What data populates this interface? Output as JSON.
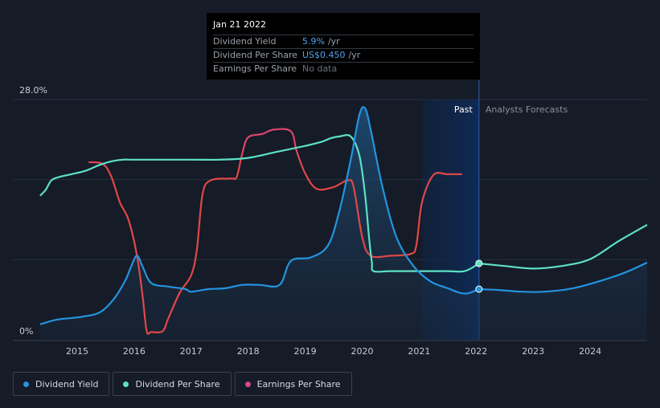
{
  "tooltip": {
    "date": "Jan 21 2022",
    "rows": [
      {
        "label": "Dividend Yield",
        "value": "5.9%",
        "unit": "/yr"
      },
      {
        "label": "Dividend Per Share",
        "value": "US$0.450",
        "unit": "/yr"
      },
      {
        "label": "Earnings Per Share",
        "value": "",
        "unit": "",
        "nodata": "No data"
      }
    ]
  },
  "legend": [
    {
      "label": "Dividend Yield",
      "color": "#2394df"
    },
    {
      "label": "Dividend Per Share",
      "color": "#5de0c6"
    },
    {
      "label": "Earnings Per Share",
      "color": "#d8458f"
    }
  ],
  "chart_data": {
    "type": "line",
    "x_ticks": [
      "2015",
      "2016",
      "2017",
      "2018",
      "2019",
      "2020",
      "2021",
      "2022",
      "2023",
      "2024"
    ],
    "y_ticks": [
      "0%",
      "28.0%"
    ],
    "ylim": [
      0,
      28.0
    ],
    "xlim": [
      2014.3,
      2025.0
    ],
    "regions": {
      "past_label": "Past",
      "forecast_label": "Analysts Forecasts",
      "past_start": 2021.05,
      "divider": 2022.05
    },
    "colors": {
      "yield": "#2394df",
      "dps": "#5de0c6",
      "eps": "#d8458f",
      "eps_low": "#e04747",
      "grid": "#2a3240",
      "past_band": "#0f2444"
    },
    "series": [
      {
        "name": "Dividend Yield",
        "points": [
          [
            2014.35,
            1.8
          ],
          [
            2014.55,
            2.2
          ],
          [
            2014.7,
            2.4
          ],
          [
            2014.85,
            2.5
          ],
          [
            2015.1,
            2.7
          ],
          [
            2015.4,
            3.2
          ],
          [
            2015.65,
            4.8
          ],
          [
            2015.85,
            7.0
          ],
          [
            2015.95,
            8.6
          ],
          [
            2016.05,
            9.8
          ],
          [
            2016.15,
            8.5
          ],
          [
            2016.3,
            6.6
          ],
          [
            2016.6,
            6.2
          ],
          [
            2016.9,
            5.9
          ],
          [
            2017.0,
            5.6
          ],
          [
            2017.3,
            5.9
          ],
          [
            2017.6,
            6.0
          ],
          [
            2017.9,
            6.4
          ],
          [
            2018.2,
            6.4
          ],
          [
            2018.55,
            6.4
          ],
          [
            2018.75,
            9.2
          ],
          [
            2019.1,
            9.6
          ],
          [
            2019.4,
            11.0
          ],
          [
            2019.6,
            15.0
          ],
          [
            2019.8,
            21.0
          ],
          [
            2019.95,
            26.2
          ],
          [
            2020.05,
            27.0
          ],
          [
            2020.15,
            24.5
          ],
          [
            2020.35,
            18.0
          ],
          [
            2020.6,
            12.0
          ],
          [
            2020.9,
            8.6
          ],
          [
            2021.2,
            6.8
          ],
          [
            2021.5,
            6.0
          ],
          [
            2021.7,
            5.5
          ],
          [
            2021.85,
            5.4
          ],
          [
            2022.05,
            5.9
          ]
        ],
        "forecast": [
          [
            2022.05,
            5.9
          ],
          [
            2022.4,
            5.8
          ],
          [
            2022.8,
            5.6
          ],
          [
            2023.2,
            5.6
          ],
          [
            2023.7,
            6.0
          ],
          [
            2024.2,
            6.9
          ],
          [
            2024.6,
            7.8
          ],
          [
            2025.0,
            9.0
          ]
        ]
      },
      {
        "name": "Dividend Per Share",
        "points": [
          [
            2014.35,
            16.8
          ],
          [
            2014.45,
            17.5
          ],
          [
            2014.55,
            18.6
          ],
          [
            2014.7,
            19.0
          ],
          [
            2014.9,
            19.3
          ],
          [
            2015.15,
            19.7
          ],
          [
            2015.4,
            20.4
          ],
          [
            2015.6,
            20.8
          ],
          [
            2015.8,
            21.0
          ],
          [
            2016.0,
            21.0
          ],
          [
            2016.5,
            21.0
          ],
          [
            2017.0,
            21.0
          ],
          [
            2017.5,
            21.0
          ],
          [
            2018.0,
            21.2
          ],
          [
            2018.5,
            21.9
          ],
          [
            2019.0,
            22.6
          ],
          [
            2019.3,
            23.1
          ],
          [
            2019.45,
            23.5
          ],
          [
            2019.6,
            23.7
          ],
          [
            2019.8,
            23.7
          ],
          [
            2019.95,
            21.5
          ],
          [
            2020.05,
            17.0
          ],
          [
            2020.12,
            12.0
          ],
          [
            2020.17,
            9.0
          ],
          [
            2020.2,
            8.0
          ],
          [
            2020.5,
            8.0
          ],
          [
            2021.0,
            8.0
          ],
          [
            2021.5,
            8.0
          ],
          [
            2021.8,
            8.0
          ],
          [
            2022.05,
            8.9
          ]
        ],
        "forecast": [
          [
            2022.05,
            8.9
          ],
          [
            2022.5,
            8.6
          ],
          [
            2023.0,
            8.3
          ],
          [
            2023.5,
            8.6
          ],
          [
            2024.0,
            9.4
          ],
          [
            2024.5,
            11.5
          ],
          [
            2025.0,
            13.4
          ]
        ]
      },
      {
        "name": "Earnings Per Share",
        "points": [
          [
            2015.2,
            20.7
          ],
          [
            2015.45,
            20.5
          ],
          [
            2015.6,
            19.0
          ],
          [
            2015.75,
            16.0
          ],
          [
            2015.9,
            14.0
          ],
          [
            2016.05,
            9.8
          ],
          [
            2016.15,
            5.0
          ],
          [
            2016.22,
            1.0
          ],
          [
            2016.3,
            0.9
          ],
          [
            2016.5,
            1.0
          ],
          [
            2016.6,
            2.5
          ],
          [
            2016.8,
            5.5
          ],
          [
            2017.0,
            7.5
          ],
          [
            2017.1,
            10.5
          ],
          [
            2017.2,
            17.0
          ],
          [
            2017.35,
            18.6
          ],
          [
            2017.7,
            18.8
          ],
          [
            2017.8,
            19.0
          ],
          [
            2017.9,
            21.8
          ],
          [
            2018.0,
            23.6
          ],
          [
            2018.25,
            24.0
          ],
          [
            2018.45,
            24.5
          ],
          [
            2018.75,
            24.3
          ],
          [
            2018.85,
            22.0
          ],
          [
            2019.0,
            19.4
          ],
          [
            2019.2,
            17.6
          ],
          [
            2019.5,
            17.8
          ],
          [
            2019.75,
            18.6
          ],
          [
            2019.85,
            17.8
          ],
          [
            2020.0,
            12.0
          ],
          [
            2020.15,
            9.8
          ],
          [
            2020.5,
            9.8
          ],
          [
            2020.85,
            10.0
          ],
          [
            2020.95,
            11.0
          ],
          [
            2021.05,
            16.0
          ],
          [
            2021.25,
            19.2
          ],
          [
            2021.5,
            19.3
          ],
          [
            2021.75,
            19.3
          ]
        ]
      }
    ]
  }
}
